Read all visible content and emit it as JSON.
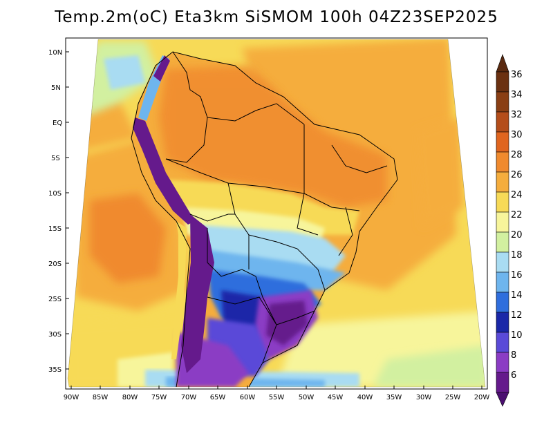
{
  "title": "Temp.2m(oC) Eta3km SiSMOM 100h 04Z23SEP2025",
  "map": {
    "variable": "2 m temperature",
    "units": "oC",
    "lat_labels": [
      "10N",
      "5N",
      "EQ",
      "5S",
      "10S",
      "15S",
      "20S",
      "25S",
      "30S",
      "35S"
    ],
    "lon_labels": [
      "90W",
      "85W",
      "80W",
      "75W",
      "70W",
      "65W",
      "60W",
      "55W",
      "50W",
      "45W",
      "40W",
      "35W",
      "30W",
      "25W",
      "20W"
    ]
  },
  "legend": {
    "levels": [
      {
        "label": "36",
        "color": "#6b3111"
      },
      {
        "label": "34",
        "color": "#8a3f14"
      },
      {
        "label": "32",
        "color": "#b44d1a"
      },
      {
        "label": "30",
        "color": "#e0651f"
      },
      {
        "label": "28",
        "color": "#f08a2e"
      },
      {
        "label": "26",
        "color": "#f5ad3d"
      },
      {
        "label": "24",
        "color": "#f7da57"
      },
      {
        "label": "22",
        "color": "#f7f59b"
      },
      {
        "label": "20",
        "color": "#d2f0a0"
      },
      {
        "label": "18",
        "color": "#a9dcf2"
      },
      {
        "label": "16",
        "color": "#6eb5ee"
      },
      {
        "label": "14",
        "color": "#2f6edd"
      },
      {
        "label": "12",
        "color": "#1a27a8"
      },
      {
        "label": "10",
        "color": "#5a4ad8"
      },
      {
        "label": "8",
        "color": "#8b3cc4"
      },
      {
        "label": "6",
        "color": "#651a8c"
      }
    ],
    "top_cap_color": "#5a2a10",
    "bottom_cap_color": "#4b0f70"
  }
}
